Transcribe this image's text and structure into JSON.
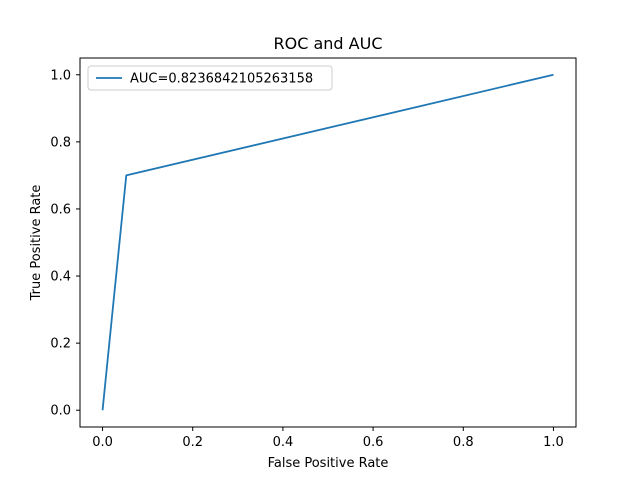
{
  "chart_data": {
    "type": "line",
    "title": "ROC and AUC",
    "xlabel": "False Positive Rate",
    "ylabel": "True Positive Rate",
    "xlim": [
      -0.05,
      1.05
    ],
    "ylim": [
      -0.05,
      1.05
    ],
    "xticks": [
      0.0,
      0.2,
      0.4,
      0.6,
      0.8,
      1.0
    ],
    "yticks": [
      0.0,
      0.2,
      0.4,
      0.6,
      0.8,
      1.0
    ],
    "xtick_labels": [
      "0.0",
      "0.2",
      "0.4",
      "0.6",
      "0.8",
      "1.0"
    ],
    "ytick_labels": [
      "0.0",
      "0.2",
      "0.4",
      "0.6",
      "0.8",
      "1.0"
    ],
    "grid": false,
    "legend_position": "upper-left",
    "series": [
      {
        "name": "AUC=0.8236842105263158",
        "color": "#1f77b4",
        "x": [
          0.0,
          0.0526,
          1.0
        ],
        "y": [
          0.0,
          0.7,
          1.0
        ]
      }
    ]
  }
}
